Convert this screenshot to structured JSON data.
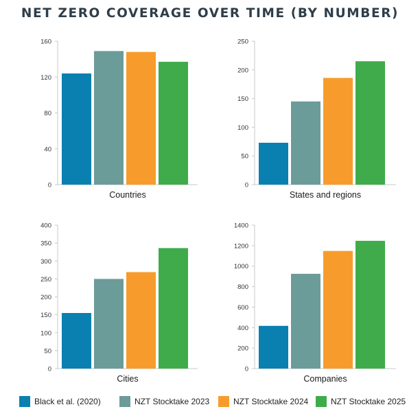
{
  "title": "NET ZERO COVERAGE OVER TIME (BY NUMBER)",
  "colors": [
    "#0a80b0",
    "#6c9c9a",
    "#f79c2c",
    "#3fab4a"
  ],
  "legend": [
    {
      "label": "Black et al. (2020)",
      "color": "#0a80b0"
    },
    {
      "label": "NZT Stocktake 2023",
      "color": "#6c9c9a"
    },
    {
      "label": "NZT Stocktake 2024",
      "color": "#f79c2c"
    },
    {
      "label": "NZT Stocktake 2025",
      "color": "#3fab4a"
    }
  ],
  "chart_data": [
    {
      "type": "bar",
      "xlabel": "Countries",
      "categories": [
        "Black et al. (2020)",
        "NZT Stocktake 2023",
        "NZT Stocktake 2024",
        "NZT Stocktake 2025"
      ],
      "values": [
        124,
        149,
        148,
        137
      ],
      "yticks": [
        0,
        40,
        80,
        120,
        160
      ],
      "ylim": [
        0,
        160
      ],
      "grid": false
    },
    {
      "type": "bar",
      "xlabel": "States and regions",
      "categories": [
        "Black et al. (2020)",
        "NZT Stocktake 2023",
        "NZT Stocktake 2024",
        "NZT Stocktake 2025"
      ],
      "values": [
        73,
        145,
        186,
        215
      ],
      "yticks": [
        0,
        50,
        100,
        150,
        200,
        250
      ],
      "ylim": [
        0,
        250
      ],
      "grid": false
    },
    {
      "type": "bar",
      "xlabel": "Cities",
      "categories": [
        "Black et al. (2020)",
        "NZT Stocktake 2023",
        "NZT Stocktake 2024",
        "NZT Stocktake 2025"
      ],
      "values": [
        155,
        250,
        269,
        336
      ],
      "yticks": [
        0,
        50,
        100,
        150,
        200,
        250,
        300,
        350,
        400
      ],
      "ylim": [
        0,
        400
      ],
      "grid": false
    },
    {
      "type": "bar",
      "xlabel": "Companies",
      "categories": [
        "Black et al. (2020)",
        "NZT Stocktake 2023",
        "NZT Stocktake 2024",
        "NZT Stocktake 2025"
      ],
      "values": [
        417,
        925,
        1148,
        1247
      ],
      "yticks": [
        0,
        200,
        400,
        600,
        800,
        1000,
        1200,
        1400
      ],
      "ylim": [
        0,
        1400
      ],
      "grid": false
    }
  ]
}
